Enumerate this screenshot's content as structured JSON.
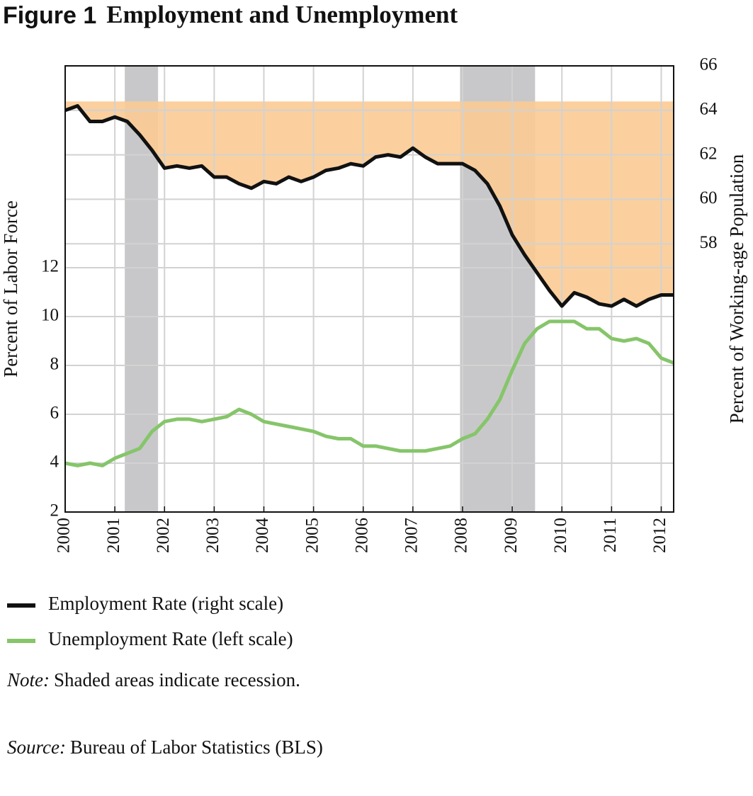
{
  "chart_data": {
    "type": "line",
    "title_prefix": "Figure 1",
    "title": "Employment and Unemployment",
    "ylabel": "Percent of Labor Force",
    "y2label": "Percent of Working-age Population",
    "note_label": "Note:",
    "note": "Shaded areas indicate recession.",
    "source_label": "Source:",
    "source": "Bureau of Labor Statistics (BLS)",
    "xlim": [
      2000,
      2012.25
    ],
    "xticks": [
      2000,
      2001,
      2002,
      2003,
      2004,
      2005,
      2006,
      2007,
      2008,
      2009,
      2010,
      2011,
      2012
    ],
    "ylim": [
      2,
      20.26
    ],
    "yticks": [
      2,
      4,
      6,
      8,
      10,
      12
    ],
    "y2lim": [
      45.94,
      66
    ],
    "y2ticks": [
      58,
      60,
      62,
      64,
      66
    ],
    "grid": true,
    "recessions": [
      [
        2001.2,
        2001.87
      ],
      [
        2007.95,
        2009.46
      ]
    ],
    "recession_color": "#c8c8ca",
    "x": [
      2000,
      2000.25,
      2000.5,
      2000.75,
      2001,
      2001.25,
      2001.5,
      2001.75,
      2002,
      2002.25,
      2002.5,
      2002.75,
      2003,
      2003.25,
      2003.5,
      2003.75,
      2004,
      2004.25,
      2004.5,
      2004.75,
      2005,
      2005.25,
      2005.5,
      2005.75,
      2006,
      2006.25,
      2006.5,
      2006.75,
      2007,
      2007.25,
      2007.5,
      2007.75,
      2008,
      2008.25,
      2008.5,
      2008.75,
      2009,
      2009.25,
      2009.5,
      2009.75,
      2010,
      2010.25,
      2010.5,
      2010.75,
      2011,
      2011.25,
      2011.5,
      2011.75,
      2012,
      2012.25
    ],
    "series": [
      {
        "name": "Employment Rate (right scale)",
        "color": "#111111",
        "axis": "y2",
        "fill_to": 64.4,
        "fill_color": "#fbcb94",
        "values": [
          64.0,
          64.2,
          63.5,
          63.5,
          63.7,
          63.5,
          62.9,
          62.2,
          61.4,
          61.5,
          61.4,
          61.5,
          61.0,
          61.0,
          60.7,
          60.5,
          60.8,
          60.7,
          61.0,
          60.8,
          61.0,
          61.3,
          61.4,
          61.6,
          61.5,
          61.9,
          62.0,
          61.9,
          62.3,
          61.9,
          61.6,
          61.6,
          61.6,
          61.3,
          60.7,
          59.7,
          58.4,
          57.5,
          56.7,
          55.9,
          55.2,
          55.8,
          55.6,
          55.3,
          55.2,
          55.5,
          55.2,
          55.5,
          55.7,
          55.7
        ]
      },
      {
        "name": "Unemployment Rate (left scale)",
        "color": "#86c56a",
        "values": [
          4.0,
          3.9,
          4.0,
          3.9,
          4.2,
          4.4,
          4.6,
          5.3,
          5.7,
          5.8,
          5.8,
          5.7,
          5.8,
          5.9,
          6.2,
          6.0,
          5.7,
          5.6,
          5.5,
          5.4,
          5.3,
          5.1,
          5.0,
          5.0,
          4.7,
          4.7,
          4.6,
          4.5,
          4.5,
          4.5,
          4.6,
          4.7,
          5.0,
          5.2,
          5.8,
          6.6,
          7.8,
          8.9,
          9.5,
          9.8,
          9.8,
          9.8,
          9.5,
          9.5,
          9.1,
          9.0,
          9.1,
          8.9,
          8.3,
          8.1
        ]
      }
    ]
  }
}
